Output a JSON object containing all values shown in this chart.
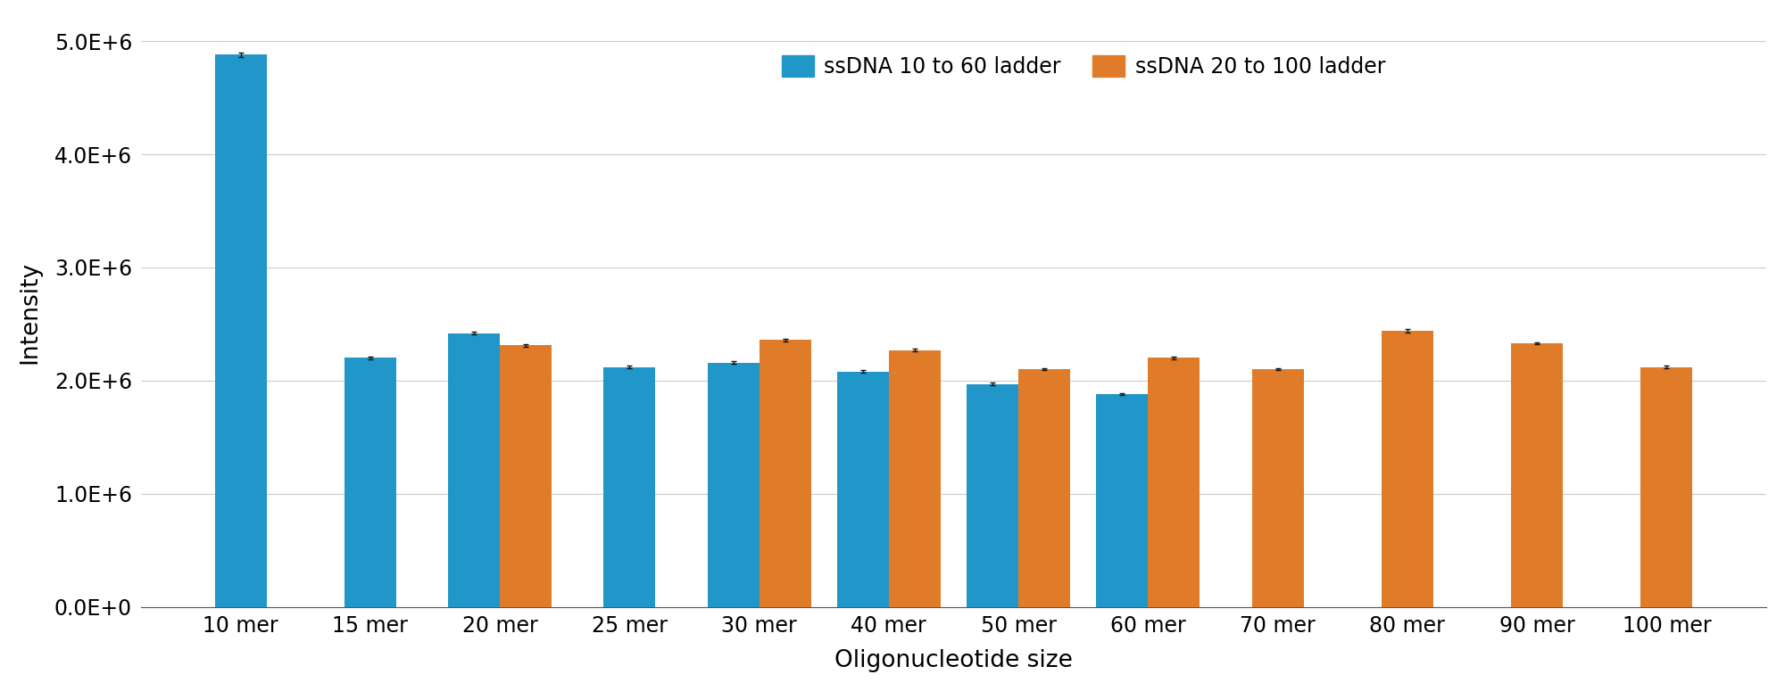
{
  "categories": [
    "10 mer",
    "15 mer",
    "20 mer",
    "25 mer",
    "30 mer",
    "40 mer",
    "50 mer",
    "60 mer",
    "70 mer",
    "80 mer",
    "90 mer",
    "100 mer"
  ],
  "blue_values": [
    4880000,
    2200000,
    2420000,
    2120000,
    2160000,
    2080000,
    1970000,
    1880000,
    null,
    null,
    null,
    null
  ],
  "blue_errors": [
    20000,
    10000,
    12000,
    10000,
    10000,
    10000,
    10000,
    8000,
    null,
    null,
    null,
    null
  ],
  "orange_values": [
    null,
    null,
    2310000,
    null,
    2360000,
    2270000,
    2100000,
    2200000,
    2100000,
    2440000,
    2330000,
    2120000
  ],
  "orange_errors": [
    null,
    null,
    12000,
    null,
    12000,
    10000,
    10000,
    10000,
    8000,
    12000,
    10000,
    10000
  ],
  "blue_color": "#2196C8",
  "orange_color": "#E07B2A",
  "error_color": "#111111",
  "ylabel": "Intensity",
  "xlabel": "Oligonucleotide size",
  "legend_blue": "ssDNA 10 to 60 ladder",
  "legend_orange": "ssDNA 20 to 100 ladder",
  "ylim": [
    0,
    5200000
  ],
  "yticks": [
    0,
    1000000,
    2000000,
    3000000,
    4000000,
    5000000
  ],
  "ytick_labels": [
    "0.0E+0",
    "1.0E+6",
    "2.0E+6",
    "3.0E+6",
    "4.0E+6",
    "5.0E+6"
  ],
  "bar_width": 0.4,
  "figsize": [
    20.0,
    7.75
  ],
  "dpi": 100,
  "bg_color": "#ffffff"
}
